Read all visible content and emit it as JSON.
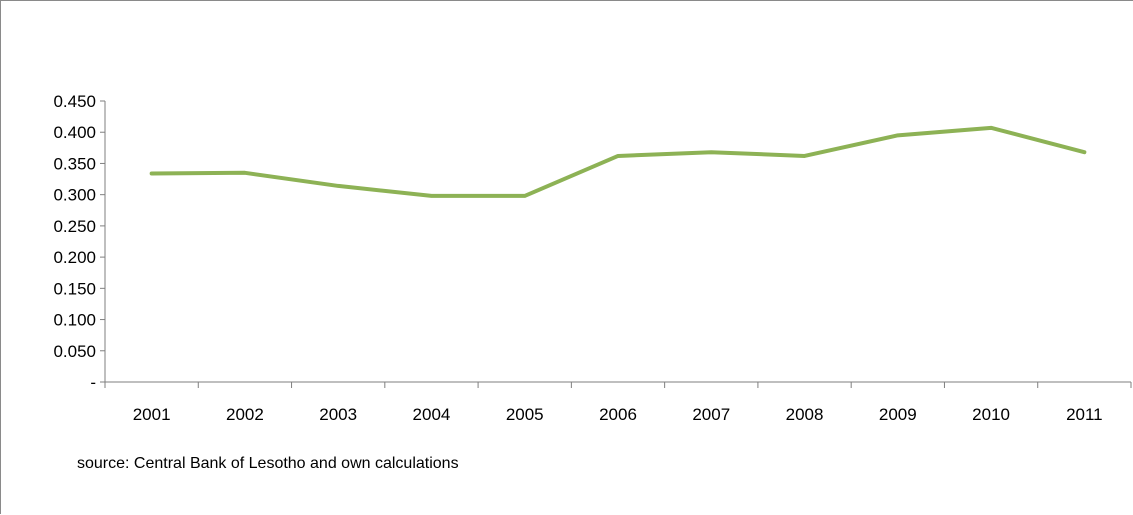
{
  "source_note": "source: Central Bank of Lesotho and own calculations",
  "chart_data": {
    "type": "line",
    "title": "",
    "xlabel": "",
    "ylabel": "",
    "categories": [
      "2001",
      "2002",
      "2003",
      "2004",
      "2005",
      "2006",
      "2007",
      "2008",
      "2009",
      "2010",
      "2011"
    ],
    "series": [
      {
        "values": [
          0.334,
          0.335,
          0.314,
          0.298,
          0.298,
          0.362,
          0.368,
          0.362,
          0.395,
          0.407,
          0.368
        ],
        "color": "#8db255"
      }
    ],
    "ylim": [
      0,
      0.45
    ],
    "y_ticks": [
      0,
      0.05,
      0.1,
      0.15,
      0.2,
      0.25,
      0.3,
      0.35,
      0.4,
      0.45
    ],
    "y_tick_labels": [
      "-",
      "0.050",
      "0.100",
      "0.150",
      "0.200",
      "0.250",
      "0.300",
      "0.350",
      "0.400",
      "0.450"
    ],
    "grid": false,
    "legend": "none",
    "axis_color": "#7f7f7f"
  }
}
